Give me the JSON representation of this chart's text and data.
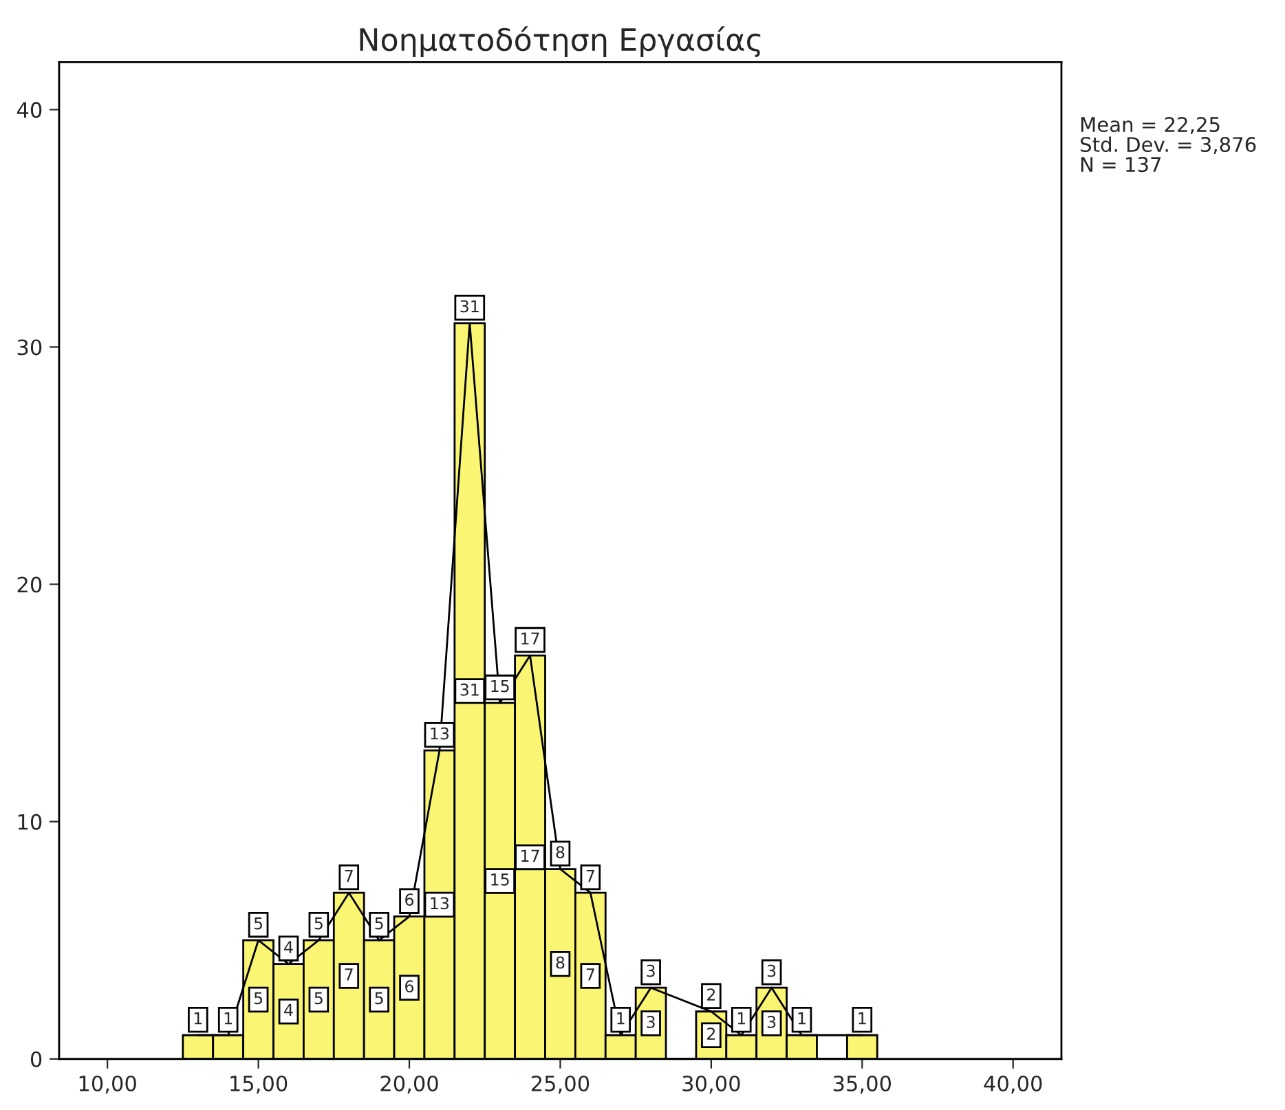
{
  "chart_data": {
    "type": "histogram",
    "title": "Νοηματοδότηση Εργασίας",
    "series": [
      {
        "color": "#faf673",
        "bins": [
          12.5,
          13.5,
          14.5,
          15.5,
          16.5,
          17.5,
          18.5,
          19.5,
          20.5,
          21.5,
          22.5,
          23.5,
          24.5,
          25.5,
          26.5,
          27.5,
          28.5,
          29.5,
          30.5,
          31.5,
          32.5,
          33.5,
          34.5,
          35.5
        ],
        "values": [
          1,
          1,
          5,
          4,
          5,
          7,
          5,
          6,
          13,
          31,
          15,
          17,
          8,
          7,
          1,
          3,
          0,
          2,
          1,
          3,
          1,
          0,
          1
        ],
        "value_labels": [
          null,
          null,
          "5",
          "4",
          "5",
          "7",
          "5",
          "6",
          "13",
          "31",
          "15",
          "17",
          "8",
          "7",
          null,
          "3",
          null,
          "2",
          null,
          "3",
          null,
          null,
          null
        ]
      },
      {
        "type": "line",
        "color": "#000000",
        "x": [
          13,
          14,
          15,
          16,
          17,
          18,
          19,
          20,
          21,
          22,
          23,
          24,
          25,
          26,
          27,
          28,
          30,
          31,
          32,
          33,
          35
        ],
        "values": [
          1,
          1,
          5,
          4,
          5,
          7,
          5,
          6,
          13,
          31,
          15,
          17,
          8,
          7,
          1,
          3,
          2,
          1,
          3,
          1,
          1
        ],
        "value_labels": [
          "1",
          "1",
          "5",
          "4",
          "5",
          "7",
          "5",
          "6",
          "13",
          "31",
          "15",
          "17",
          "8",
          "7",
          "1",
          "3",
          "2",
          "1",
          "3",
          "1",
          "1"
        ]
      }
    ],
    "xlim": [
      8.4,
      41.6
    ],
    "ylim": [
      0,
      42
    ],
    "xticks": [
      {
        "value": 10,
        "label": "10,00"
      },
      {
        "value": 15,
        "label": "15,00"
      },
      {
        "value": 20,
        "label": "20,00"
      },
      {
        "value": 25,
        "label": "25,00"
      },
      {
        "value": 30,
        "label": "30,00"
      },
      {
        "value": 35,
        "label": "35,00"
      },
      {
        "value": 40,
        "label": "40,00"
      }
    ],
    "yticks": [
      0,
      10,
      20,
      30,
      40
    ],
    "line_style": "solid",
    "annotations": [
      "Mean = 22,25",
      "Std. Dev. = 3,876",
      "N = 137"
    ]
  }
}
